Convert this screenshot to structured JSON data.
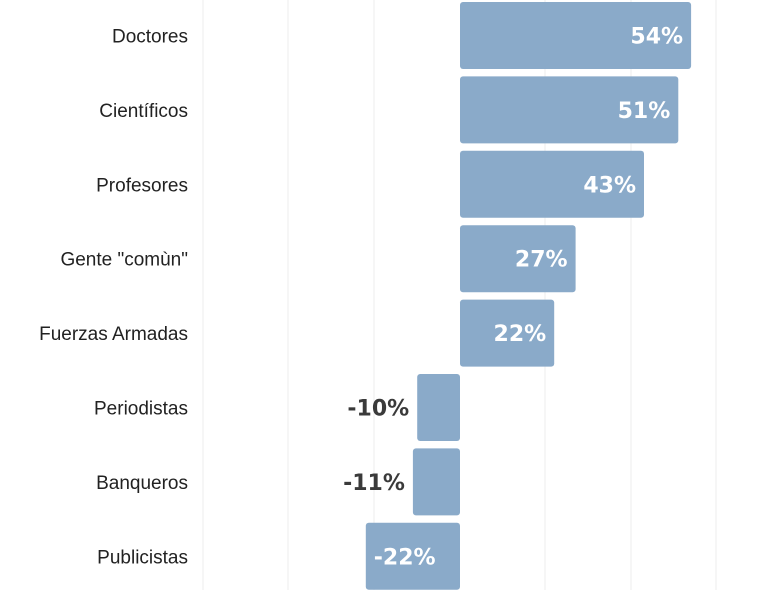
{
  "chart_data": {
    "type": "bar",
    "orientation": "horizontal",
    "categories": [
      "Doctores",
      "Científicos",
      "Profesores",
      "Gente \"comùn\"",
      "Fuerzas Armadas",
      "Periodistas",
      "Banqueros",
      "Publicistas"
    ],
    "values": [
      54,
      51,
      43,
      27,
      22,
      -10,
      -11,
      -22
    ],
    "value_labels": [
      "54%",
      "51%",
      "43%",
      "27%",
      "22%",
      "-10%",
      "-11%",
      "-22%"
    ],
    "unit": "%",
    "xlim": [
      -60,
      60
    ],
    "grid": true,
    "title": "",
    "xlabel": "",
    "ylabel": "",
    "colors": {
      "bar": "#8aaac9",
      "label_inside": "#ffffff",
      "label_outside": "#3a3a3a",
      "category_text": "#222222",
      "grid": "#eeeeee"
    }
  }
}
